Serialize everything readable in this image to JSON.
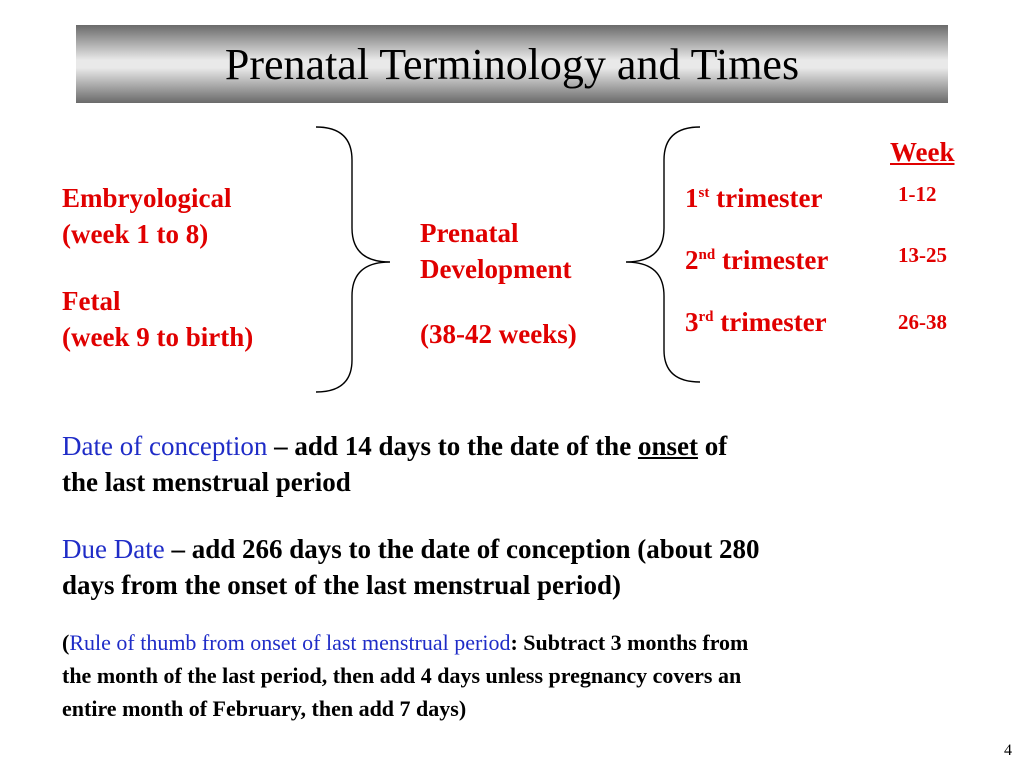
{
  "title": "Prenatal Terminology and Times",
  "stages": {
    "embryological_label": "Embryological",
    "embryological_range": "(week 1 to 8)",
    "fetal_label": "Fetal",
    "fetal_range": "(week 9 to birth)"
  },
  "center": {
    "line1": "Prenatal",
    "line2": "Development",
    "duration": "(38-42 weeks)"
  },
  "trimesters": {
    "week_header": "Week",
    "items": [
      {
        "num": "1",
        "suffix": "st",
        "label": "trimester",
        "weeks": "1-12"
      },
      {
        "num": "2",
        "suffix": "nd",
        "label": "trimester",
        "weeks": "13-25"
      },
      {
        "num": "3",
        "suffix": "rd",
        "label": "trimester",
        "weeks": "26-38"
      }
    ]
  },
  "conception": {
    "term": "Date of conception",
    "text_a": " – add 14 days to the date of the ",
    "onset": "onset",
    "text_b": " of",
    "line2": "the last menstrual period"
  },
  "due_date": {
    "term": "Due Date",
    "line1": " – add 266 days to the date of conception (about 280",
    "line2": "days from the onset of the last menstrual period)"
  },
  "rule": {
    "open": "(",
    "term": "Rule of thumb from onset of last menstrual period",
    "line1": ": Subtract 3 months from",
    "line2": "the month of the last period, then add 4 days unless pregnancy covers an",
    "line3": "entire month of February, then add 7 days)"
  },
  "page_number": "4",
  "colors": {
    "red": "#e00000",
    "blue": "#1f2cc7"
  }
}
